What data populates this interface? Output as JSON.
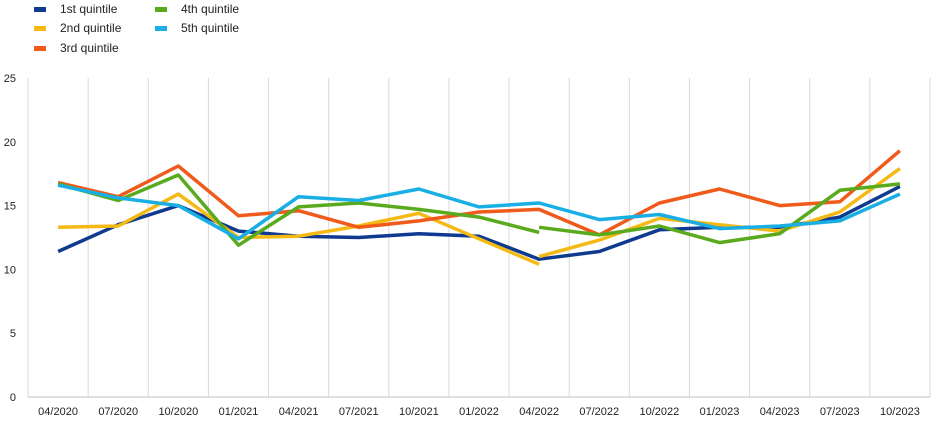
{
  "chart_data": {
    "type": "line",
    "title": "",
    "xlabel": "",
    "ylabel": "",
    "ylim": [
      0,
      25
    ],
    "yticks": [
      0,
      5,
      10,
      15,
      20,
      25
    ],
    "grid": "vertical",
    "legend_position": "top-left",
    "categories": [
      "04/2020",
      "07/2020",
      "10/2020",
      "01/2021",
      "04/2021",
      "07/2021",
      "10/2021",
      "01/2022",
      "04/2022",
      "07/2022",
      "10/2022",
      "01/2023",
      "04/2023",
      "07/2023",
      "10/2023"
    ],
    "series": [
      {
        "name": "1st quintile",
        "color": "#0e3a8f",
        "values": [
          11.4,
          13.5,
          15.0,
          13.0,
          12.6,
          12.5,
          12.8,
          12.6,
          10.8,
          11.4,
          13.1,
          13.3,
          13.3,
          14.1,
          16.5
        ]
      },
      {
        "name": "2nd quintile",
        "color": "#f5b914",
        "values": [
          13.3,
          13.4,
          15.9,
          12.5,
          12.6,
          13.4,
          14.4,
          12.4,
          10.4,
          null,
          null,
          null,
          null,
          null,
          null
        ]
      },
      {
        "name": "2nd quintile (after 04/2022)",
        "legend": false,
        "color": "#f5b914",
        "values": [
          null,
          null,
          null,
          null,
          null,
          null,
          null,
          null,
          11.0,
          12.3,
          14.0,
          13.5,
          13.0,
          14.5,
          17.9
        ]
      },
      {
        "name": "3rd quintile",
        "color": "#f05a1a",
        "values": [
          16.8,
          15.7,
          18.1,
          14.2,
          14.6,
          13.3,
          13.8,
          14.5,
          14.7,
          12.7,
          15.2,
          16.3,
          15.0,
          15.3,
          19.3
        ]
      },
      {
        "name": "4th quintile",
        "color": "#5aaa1e",
        "values": [
          16.7,
          15.4,
          17.4,
          11.9,
          14.9,
          15.2,
          14.7,
          14.1,
          12.9,
          null,
          null,
          null,
          null,
          null,
          null
        ]
      },
      {
        "name": "4th quintile (after 04/2022)",
        "legend": false,
        "color": "#5aaa1e",
        "values": [
          null,
          null,
          null,
          null,
          null,
          null,
          null,
          null,
          13.3,
          12.7,
          13.4,
          12.1,
          12.8,
          16.2,
          16.7
        ]
      },
      {
        "name": "5th quintile",
        "color": "#19afe4",
        "values": [
          16.6,
          15.6,
          15.0,
          12.4,
          15.7,
          15.4,
          16.3,
          14.9,
          15.2,
          13.9,
          14.3,
          13.2,
          13.4,
          13.8,
          15.9
        ]
      }
    ]
  }
}
